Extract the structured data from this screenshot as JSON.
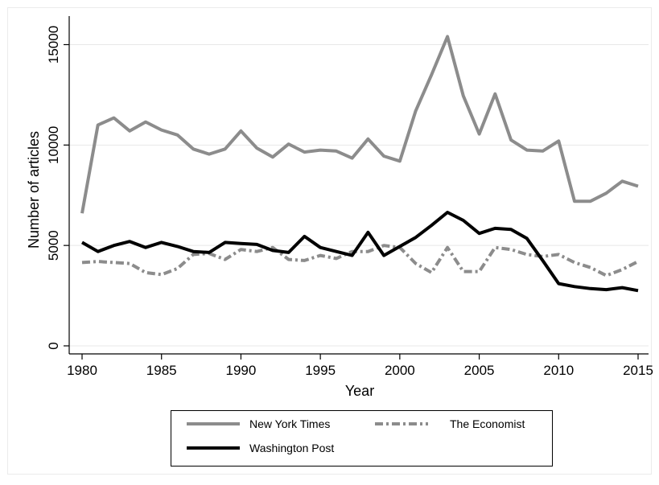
{
  "chart_data": {
    "type": "line",
    "title": "",
    "xlabel": "Year",
    "ylabel": "Number of articles",
    "xlim": [
      1980,
      2015
    ],
    "ylim": [
      0,
      15500
    ],
    "xticks": [
      1980,
      1985,
      1990,
      1995,
      2000,
      2005,
      2010,
      2015
    ],
    "yticks": [
      0,
      5000,
      10000,
      15000
    ],
    "xtick_labels": [
      "1980",
      "1985",
      "1990",
      "1995",
      "2000",
      "2005",
      "2010",
      "2015"
    ],
    "ytick_labels": [
      "0",
      "5000",
      "10000",
      "15000"
    ],
    "grid": "horizontal",
    "legend_position": "bottom",
    "x": [
      1980,
      1981,
      1982,
      1983,
      1984,
      1985,
      1986,
      1987,
      1988,
      1989,
      1990,
      1991,
      1992,
      1993,
      1994,
      1995,
      1996,
      1997,
      1998,
      1999,
      2000,
      2001,
      2002,
      2003,
      2004,
      2005,
      2006,
      2007,
      2008,
      2009,
      2010,
      2011,
      2012,
      2013,
      2014,
      2015
    ],
    "series": [
      {
        "name": "New York Times",
        "color": "#8c8c8c",
        "dash": "solid",
        "values": [
          6600,
          11000,
          11350,
          10700,
          11150,
          10750,
          10500,
          9800,
          9550,
          9800,
          10700,
          9850,
          9400,
          10050,
          9650,
          9750,
          9700,
          9350,
          10300,
          9450,
          9200,
          11700,
          13500,
          15400,
          12450,
          10550,
          12550,
          10250,
          9750,
          9700,
          10200,
          7200,
          7200,
          7600,
          8200,
          7950
        ]
      },
      {
        "name": "The Economist",
        "color": "#8c8c8c",
        "dash": "dashdot",
        "values": [
          4150,
          4200,
          4150,
          4100,
          3650,
          3550,
          3850,
          4550,
          4600,
          4300,
          4800,
          4700,
          4900,
          4300,
          4250,
          4500,
          4350,
          4700,
          4700,
          5000,
          4900,
          4100,
          3650,
          4900,
          3700,
          3700,
          4900,
          4800,
          4550,
          4450,
          4550,
          4150,
          3900,
          3500,
          3800,
          4200
        ]
      },
      {
        "name": "Washington Post",
        "color": "#000000",
        "dash": "solid",
        "values": [
          5150,
          4700,
          5000,
          5200,
          4900,
          5150,
          4950,
          4700,
          4650,
          5150,
          5100,
          5050,
          4750,
          4650,
          5450,
          4900,
          4700,
          4500,
          5650,
          4500,
          4950,
          5400,
          6000,
          6650,
          6250,
          5600,
          5850,
          5800,
          5350,
          4250,
          3100,
          2950,
          2850,
          2800,
          2900,
          2750
        ]
      }
    ]
  }
}
